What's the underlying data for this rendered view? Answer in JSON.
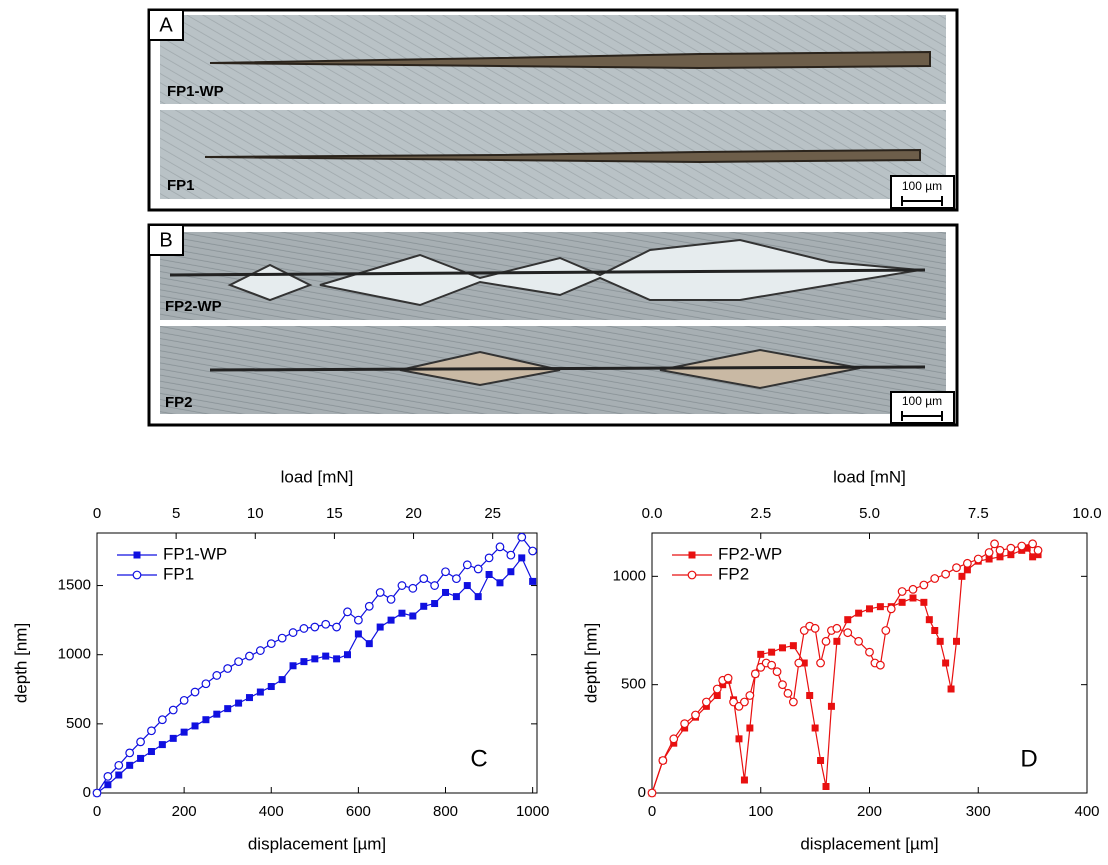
{
  "figure_panels": {
    "A": {
      "label": "A",
      "images": [
        "FP1-WP",
        "FP1"
      ],
      "scale_bar": "100 µm"
    },
    "B": {
      "label": "B",
      "images": [
        "FP2-WP",
        "FP2"
      ],
      "scale_bar": "100 µm"
    }
  },
  "chart_data": [
    {
      "type": "line",
      "annotation": "C",
      "xlabel": "displacement [µm]",
      "x2label": "load [mN]",
      "ylabel": "depth [nm]",
      "xlim": [
        0,
        1010
      ],
      "xticks": [
        0,
        200,
        400,
        600,
        800,
        1000
      ],
      "x2lim": [
        0,
        27.8
      ],
      "x2ticks": [
        0,
        5,
        10,
        15,
        20,
        25
      ],
      "ylim": [
        0,
        1880
      ],
      "yticks": [
        0,
        500,
        1000,
        1500
      ],
      "legend": "upper-left",
      "series": [
        {
          "name": "FP1-WP",
          "color": "#1010e0",
          "marker": "square",
          "x": [
            0,
            25,
            50,
            75,
            100,
            125,
            150,
            175,
            200,
            225,
            250,
            275,
            300,
            325,
            350,
            375,
            400,
            425,
            450,
            475,
            500,
            525,
            550,
            575,
            600,
            625,
            650,
            675,
            700,
            725,
            750,
            775,
            800,
            825,
            850,
            875,
            900,
            925,
            950,
            975,
            1000
          ],
          "values": [
            0,
            60,
            130,
            200,
            250,
            300,
            350,
            395,
            440,
            485,
            530,
            570,
            610,
            650,
            690,
            730,
            770,
            820,
            920,
            950,
            970,
            990,
            970,
            1000,
            1150,
            1080,
            1200,
            1250,
            1300,
            1280,
            1350,
            1370,
            1450,
            1420,
            1500,
            1420,
            1580,
            1520,
            1600,
            1700,
            1530
          ]
        },
        {
          "name": "FP1",
          "color": "#1010e0",
          "marker": "circle",
          "x": [
            0,
            25,
            50,
            75,
            100,
            125,
            150,
            175,
            200,
            225,
            250,
            275,
            300,
            325,
            350,
            375,
            400,
            425,
            450,
            475,
            500,
            525,
            550,
            575,
            600,
            625,
            650,
            675,
            700,
            725,
            750,
            775,
            800,
            825,
            850,
            875,
            900,
            925,
            950,
            975,
            1000
          ],
          "values": [
            0,
            120,
            200,
            290,
            370,
            450,
            530,
            600,
            670,
            730,
            790,
            850,
            900,
            950,
            990,
            1030,
            1080,
            1120,
            1160,
            1190,
            1200,
            1220,
            1200,
            1310,
            1250,
            1350,
            1450,
            1400,
            1500,
            1480,
            1550,
            1500,
            1600,
            1550,
            1650,
            1620,
            1700,
            1780,
            1720,
            1850,
            1750
          ]
        }
      ]
    },
    {
      "type": "line",
      "annotation": "D",
      "xlabel": "displacement [µm]",
      "x2label": "load [mN]",
      "ylabel": "depth [nm]",
      "xlim": [
        0,
        400
      ],
      "xticks": [
        0,
        100,
        200,
        300,
        400
      ],
      "x2lim": [
        0,
        10
      ],
      "x2ticks": [
        {
          "value": 0,
          "label": "0.0"
        },
        {
          "value": 2.5,
          "label": "2.5"
        },
        {
          "value": 5,
          "label": "5.0"
        },
        {
          "value": 7.5,
          "label": "7.5"
        },
        {
          "value": 10,
          "label": "10.0"
        }
      ],
      "ylim": [
        0,
        1200
      ],
      "yticks": [
        0,
        500,
        1000
      ],
      "legend": "upper-left",
      "series": [
        {
          "name": "FP2-WP",
          "color": "#e81010",
          "marker": "square",
          "x": [
            0,
            10,
            20,
            30,
            40,
            50,
            60,
            65,
            70,
            75,
            80,
            85,
            90,
            95,
            100,
            110,
            120,
            130,
            140,
            145,
            150,
            155,
            160,
            165,
            170,
            180,
            190,
            200,
            210,
            220,
            230,
            240,
            250,
            255,
            260,
            265,
            270,
            275,
            280,
            285,
            290,
            300,
            310,
            320,
            330,
            340,
            345,
            350,
            355
          ],
          "values": [
            0,
            150,
            230,
            300,
            350,
            400,
            450,
            500,
            520,
            430,
            250,
            60,
            300,
            550,
            640,
            650,
            670,
            680,
            600,
            450,
            300,
            150,
            30,
            400,
            700,
            800,
            830,
            850,
            860,
            860,
            880,
            900,
            880,
            800,
            750,
            700,
            600,
            480,
            700,
            1000,
            1030,
            1070,
            1080,
            1090,
            1100,
            1120,
            1130,
            1090,
            1100
          ]
        },
        {
          "name": "FP2",
          "color": "#e81010",
          "marker": "circle",
          "x": [
            0,
            10,
            20,
            30,
            40,
            50,
            60,
            65,
            70,
            75,
            80,
            85,
            90,
            95,
            100,
            105,
            110,
            115,
            120,
            125,
            130,
            135,
            140,
            145,
            150,
            155,
            160,
            165,
            170,
            180,
            190,
            200,
            205,
            210,
            215,
            220,
            230,
            240,
            250,
            260,
            270,
            280,
            290,
            300,
            310,
            315,
            320,
            330,
            340,
            350,
            355
          ],
          "values": [
            0,
            150,
            250,
            320,
            360,
            420,
            480,
            520,
            530,
            420,
            400,
            420,
            450,
            550,
            580,
            600,
            590,
            560,
            500,
            460,
            420,
            600,
            750,
            770,
            760,
            600,
            700,
            750,
            760,
            740,
            700,
            650,
            600,
            590,
            750,
            850,
            930,
            940,
            960,
            990,
            1010,
            1040,
            1060,
            1080,
            1110,
            1150,
            1120,
            1130,
            1140,
            1150,
            1120
          ]
        }
      ]
    }
  ]
}
